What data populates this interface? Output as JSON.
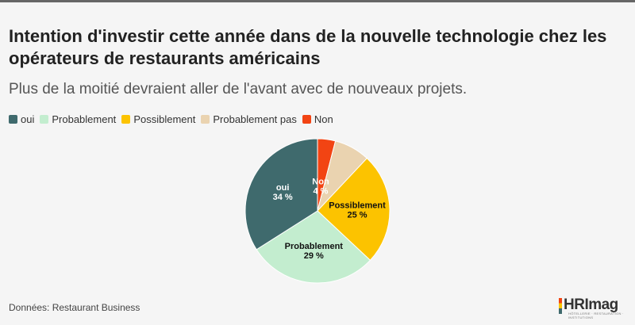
{
  "title": "Intention d'investir cette année dans de la nouvelle technologie chez les opérateurs de restaurants américains",
  "subtitle": "Plus de la moitié devraient aller de l'avant avec de nouveaux projets.",
  "source": "Données: Restaurant Business",
  "logo": {
    "text": "HRImag",
    "tagline": "HÔTELLERIE · RESTAURATION · INSTITUTIONS"
  },
  "chart_data": {
    "type": "pie",
    "legend_position": "top-left",
    "slices": [
      {
        "name": "Non",
        "value": 4,
        "label": "4 %",
        "color": "#f24413",
        "label_color": "#ffffff"
      },
      {
        "name": "Probablement pas",
        "value": 8,
        "label": "",
        "color": "#ead3b0",
        "label_color": "#222222"
      },
      {
        "name": "Possiblement",
        "value": 25,
        "label": "25 %",
        "color": "#fcc300",
        "label_color": "#111111"
      },
      {
        "name": "Probablement",
        "value": 29,
        "label": "29 %",
        "color": "#c3edcf",
        "label_color": "#111111"
      },
      {
        "name": "oui",
        "value": 34,
        "label": "34 %",
        "color": "#3f6a6d",
        "label_color": "#ffffff"
      }
    ],
    "legend_order": [
      "oui",
      "Probablement",
      "Possiblement",
      "Probablement pas",
      "Non"
    ]
  }
}
